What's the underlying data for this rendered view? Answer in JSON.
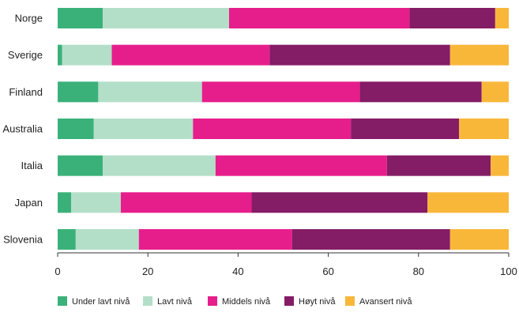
{
  "chart_data": {
    "type": "bar",
    "orientation": "horizontal",
    "stacked": true,
    "categories": [
      "Norge",
      "Sverige",
      "Finland",
      "Australia",
      "Italia",
      "Japan",
      "Slovenia"
    ],
    "series": [
      {
        "name": "Under lavt nivå",
        "color": "#3bb17a",
        "values": [
          10,
          1,
          9,
          8,
          10,
          3,
          4
        ]
      },
      {
        "name": "Lavt nivå",
        "color": "#b3dfc8",
        "values": [
          28,
          11,
          23,
          22,
          25,
          11,
          14
        ]
      },
      {
        "name": "Middels nivå",
        "color": "#e61e8c",
        "values": [
          40,
          35,
          35,
          35,
          38,
          29,
          34
        ]
      },
      {
        "name": "Høyt nivå",
        "color": "#851c66",
        "values": [
          19,
          40,
          27,
          24,
          23,
          39,
          35
        ]
      },
      {
        "name": "Avansert nivå",
        "color": "#f9b73a",
        "values": [
          3,
          13,
          6,
          11,
          4,
          18,
          13
        ]
      }
    ],
    "xlim": [
      0,
      100
    ],
    "xticks": [
      0,
      20,
      40,
      60,
      80,
      100
    ],
    "legend_position": "bottom",
    "grid": false
  }
}
